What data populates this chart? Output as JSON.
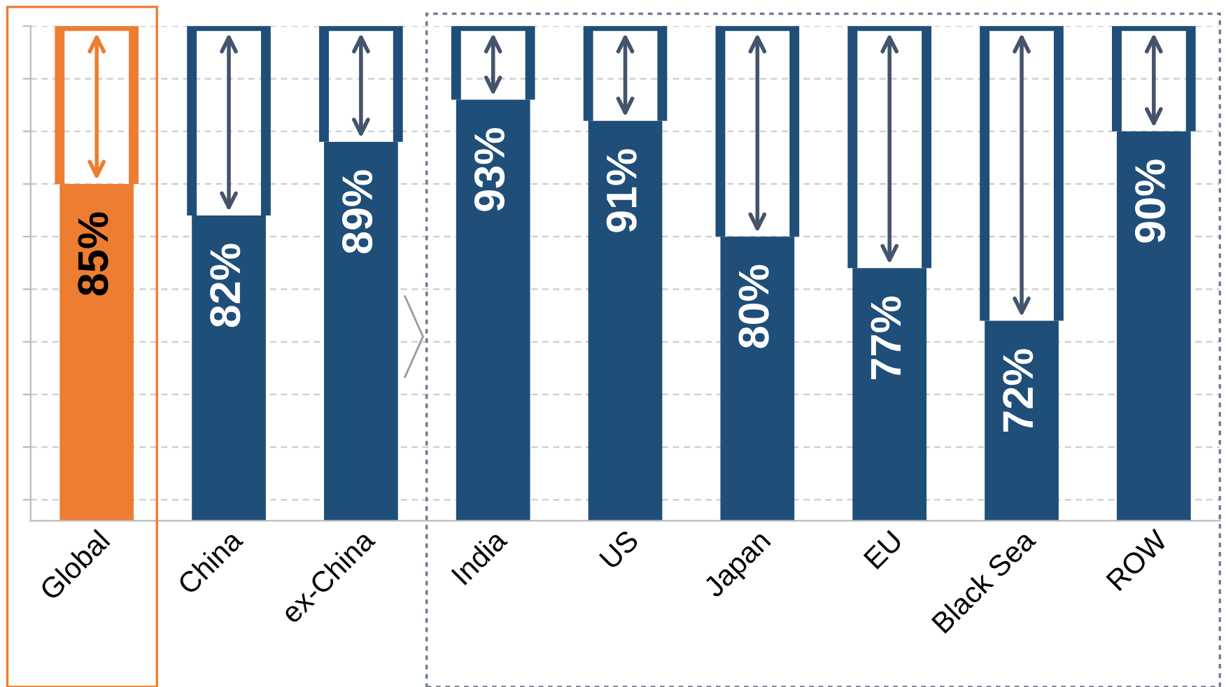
{
  "chart_data": {
    "type": "bar",
    "categories": [
      "Global",
      "China",
      "ex-China",
      "India",
      "US",
      "Japan",
      "EU",
      "Black Sea",
      "ROW"
    ],
    "values": [
      85,
      82,
      89,
      93,
      91,
      80,
      77,
      72,
      90
    ],
    "colors": [
      "#ed7d31",
      "#1f4e79",
      "#1f4e79",
      "#1f4e79",
      "#1f4e79",
      "#1f4e79",
      "#1f4e79",
      "#1f4e79",
      "#1f4e79"
    ],
    "value_labels": [
      "85%",
      "82%",
      "89%",
      "93%",
      "91%",
      "80%",
      "77%",
      "72%",
      "90%"
    ],
    "ylim": [
      53,
      100
    ],
    "yticks": [
      {
        "value": 55,
        "label": null
      },
      {
        "value": 60,
        "label": null
      },
      {
        "value": 65,
        "label": null
      },
      {
        "value": 70,
        "label": null
      },
      {
        "value": 75,
        "label": null
      },
      {
        "value": 80,
        "label": null
      },
      {
        "value": 85,
        "label": null
      },
      {
        "value": 90,
        "label": null
      },
      {
        "value": 95,
        "label": null
      },
      {
        "value": 100,
        "label": null
      }
    ],
    "grid": "y",
    "tick_labels": "x"
  }
}
